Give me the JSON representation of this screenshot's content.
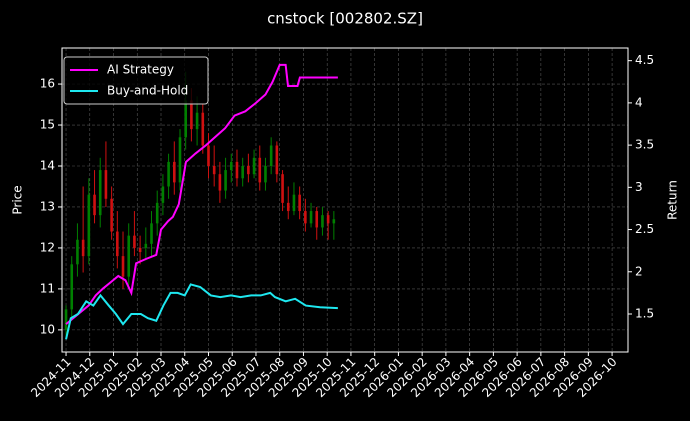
{
  "chart_data": {
    "type": "candlestick",
    "title": "cnstock [002802.SZ]",
    "ylabel": "Price",
    "y2label": "Return",
    "xlim": [
      -0.17,
      23.67
    ],
    "xticks": [
      {
        "value": 0,
        "label": "2024-11"
      },
      {
        "value": 1,
        "label": "2024-12"
      },
      {
        "value": 2,
        "label": "2025-01"
      },
      {
        "value": 3,
        "label": "2025-02"
      },
      {
        "value": 4,
        "label": "2025-03"
      },
      {
        "value": 5,
        "label": "2025-04"
      },
      {
        "value": 6,
        "label": "2025-05"
      },
      {
        "value": 7,
        "label": "2025-06"
      },
      {
        "value": 8,
        "label": "2025-07"
      },
      {
        "value": 9,
        "label": "2025-08"
      },
      {
        "value": 10,
        "label": "2025-09"
      },
      {
        "value": 11,
        "label": "2025-10"
      },
      {
        "value": 12,
        "label": "2025-11"
      },
      {
        "value": 13,
        "label": "2025-12"
      },
      {
        "value": 14,
        "label": "2026-01"
      },
      {
        "value": 15,
        "label": "2026-02"
      },
      {
        "value": 16,
        "label": "2026-03"
      },
      {
        "value": 17,
        "label": "2026-04"
      },
      {
        "value": 18,
        "label": "2026-05"
      },
      {
        "value": 19,
        "label": "2026-06"
      },
      {
        "value": 20,
        "label": "2026-07"
      },
      {
        "value": 21,
        "label": "2026-08"
      },
      {
        "value": 22,
        "label": "2026-09"
      },
      {
        "value": 23,
        "label": "2026-10"
      }
    ],
    "ylim": [
      9.46,
      16.88
    ],
    "yticks": [
      10,
      11,
      12,
      13,
      14,
      15,
      16
    ],
    "y2lim": [
      1.05,
      4.65
    ],
    "y2ticks": [
      1.5,
      2.0,
      2.5,
      3.0,
      3.5,
      4.0,
      4.5
    ],
    "grid": true,
    "legend": "upper left",
    "up_color": "#008000",
    "down_color": "#d01010",
    "candles": {
      "x": [
        0,
        0.24,
        0.48,
        0.72,
        0.96,
        1.2,
        1.44,
        1.68,
        1.92,
        2.16,
        2.4,
        2.64,
        2.88,
        3.12,
        3.36,
        3.6,
        3.84,
        4.08,
        4.32,
        4.56,
        4.8,
        5.04,
        5.28,
        5.52,
        5.76,
        6.0,
        6.24,
        6.48,
        6.72,
        6.96,
        7.2,
        7.44,
        7.68,
        7.92,
        8.16,
        8.4,
        8.64,
        8.88,
        9.12,
        9.36,
        9.6,
        9.84,
        10.08,
        10.32,
        10.56,
        10.8,
        11.04,
        11.28
      ],
      "open": [
        10.0,
        10.5,
        11.6,
        12.2,
        11.8,
        13.3,
        12.8,
        13.9,
        13.2,
        12.4,
        11.8,
        11.3,
        12.3,
        12.0,
        12.0,
        12.1,
        12.6,
        13.1,
        13.5,
        14.1,
        13.6,
        14.7,
        15.6,
        14.9,
        15.3,
        14.5,
        14.0,
        13.8,
        13.4,
        13.9,
        14.1,
        13.7,
        14.0,
        13.8,
        14.2,
        13.6,
        14.0,
        14.5,
        13.8,
        13.1,
        12.9,
        13.3,
        12.9,
        12.6,
        12.9,
        12.5,
        12.8,
        12.6
      ],
      "high": [
        10.6,
        11.8,
        12.6,
        13.5,
        13.7,
        13.9,
        14.2,
        14.6,
        13.5,
        12.9,
        12.4,
        12.6,
        12.9,
        12.3,
        12.5,
        12.9,
        13.4,
        13.8,
        14.3,
        14.6,
        14.9,
        16.3,
        15.9,
        15.7,
        15.5,
        14.8,
        14.5,
        14.1,
        14.2,
        14.3,
        14.4,
        14.2,
        14.3,
        14.4,
        14.5,
        14.2,
        14.7,
        14.6,
        13.9,
        13.5,
        13.6,
        13.5,
        13.2,
        13.1,
        13.0,
        13.0,
        12.9,
        12.9
      ],
      "low": [
        9.8,
        10.3,
        11.3,
        11.4,
        11.6,
        12.6,
        12.5,
        13.0,
        12.2,
        11.5,
        11.0,
        11.1,
        11.8,
        11.6,
        11.7,
        11.8,
        12.3,
        12.8,
        13.2,
        13.3,
        13.4,
        14.4,
        14.6,
        14.5,
        14.3,
        13.7,
        13.5,
        13.1,
        13.2,
        13.6,
        13.5,
        13.5,
        13.6,
        13.7,
        13.4,
        13.4,
        13.8,
        13.6,
        12.9,
        12.7,
        12.8,
        12.7,
        12.4,
        12.5,
        12.2,
        12.3,
        12.2,
        12.2
      ],
      "close": [
        10.5,
        11.6,
        12.2,
        11.8,
        13.3,
        12.8,
        13.9,
        13.2,
        12.4,
        11.8,
        11.3,
        12.3,
        12.0,
        11.9,
        12.1,
        12.6,
        13.1,
        13.5,
        14.1,
        13.6,
        14.7,
        15.6,
        14.9,
        15.3,
        14.5,
        14.0,
        13.8,
        13.4,
        13.9,
        14.1,
        13.7,
        14.0,
        13.8,
        14.2,
        13.6,
        14.0,
        14.5,
        13.8,
        13.1,
        12.9,
        13.3,
        12.9,
        12.6,
        12.9,
        12.5,
        12.8,
        12.6,
        12.7
      ]
    },
    "series": [
      {
        "name": "AI Strategy",
        "color": "#ff00ff",
        "axis": "y2",
        "x": [
          0,
          0.3,
          0.6,
          0.95,
          1.25,
          1.55,
          1.9,
          2.2,
          2.5,
          2.75,
          2.95,
          3.35,
          3.8,
          4.0,
          4.3,
          4.5,
          4.75,
          5.05,
          5.45,
          5.9,
          6.3,
          6.7,
          7.1,
          7.55,
          8.0,
          8.4,
          8.7,
          9.0,
          9.25,
          9.35,
          9.75,
          9.85,
          10.5,
          11.45
        ],
        "values": [
          1.38,
          1.45,
          1.52,
          1.6,
          1.72,
          1.8,
          1.88,
          1.95,
          1.9,
          1.75,
          2.1,
          2.15,
          2.2,
          2.5,
          2.6,
          2.65,
          2.8,
          3.3,
          3.4,
          3.5,
          3.6,
          3.7,
          3.85,
          3.9,
          4.0,
          4.1,
          4.25,
          4.45,
          4.45,
          4.2,
          4.2,
          4.3,
          4.3,
          4.3
        ]
      },
      {
        "name": "Buy-and-Hold",
        "color": "#1ee8f0",
        "axis": "y2",
        "x": [
          0,
          0.2,
          0.5,
          0.85,
          1.15,
          1.45,
          1.8,
          2.1,
          2.4,
          2.75,
          3.15,
          3.45,
          3.8,
          4.1,
          4.4,
          4.7,
          5.0,
          5.25,
          5.65,
          6.1,
          6.5,
          6.95,
          7.35,
          7.8,
          8.2,
          8.6,
          8.8,
          9.25,
          9.65,
          10.1,
          10.7,
          11.45
        ],
        "values": [
          1.2,
          1.45,
          1.5,
          1.65,
          1.6,
          1.72,
          1.6,
          1.5,
          1.38,
          1.5,
          1.5,
          1.45,
          1.42,
          1.6,
          1.75,
          1.75,
          1.72,
          1.85,
          1.82,
          1.72,
          1.7,
          1.72,
          1.7,
          1.72,
          1.72,
          1.75,
          1.7,
          1.65,
          1.68,
          1.6,
          1.58,
          1.57
        ]
      }
    ]
  }
}
